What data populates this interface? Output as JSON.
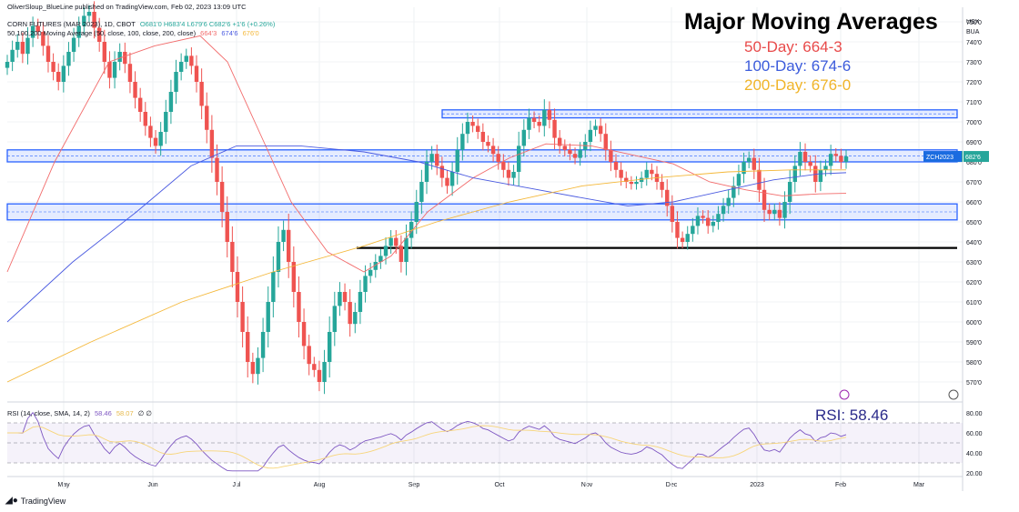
{
  "header": {
    "publisher": "OliverSloup_BlueLine published on TradingView.com, Feb 02, 2023 13:09 UTC",
    "symbol_line": "CORN FUTURES (MAR 2023), 1D, CBOT",
    "ohlc": "O681'0 H683'4 L679'6 C682'6 +1'6 (+0.26%)",
    "ma_line": "50,100,200 Moving Average (50, close, 100, close, 200, close)",
    "ma_values": [
      "664'3",
      "674'6",
      "676'0"
    ]
  },
  "annotations": {
    "title": "Major Moving Averages",
    "ma50": "50-Day: 664-3",
    "ma100": "100-Day: 674-6",
    "ma200": "200-Day: 676-0",
    "rsi": "RSI: 58.46"
  },
  "rsi_header": {
    "label": "RSI (14, close, SMA, 14, 2)",
    "rsi_value": "58.46",
    "sma_value": "58.07",
    "tail": "∅ ∅"
  },
  "price_axis": {
    "currency": "USX",
    "unit": "BUA",
    "last_label": "ZCH2023",
    "last_value": "682'6"
  },
  "rsi_axis": [
    "80.00",
    "60.00",
    "40.00",
    "20.00"
  ],
  "logo": "TradingView",
  "colors": {
    "up": "#26a69a",
    "down": "#ef5350",
    "ma50": "#f26b6b",
    "ma100": "#4a5ae0",
    "ma200": "#f4b83a",
    "band": "#2962ff",
    "rsi_line": "#7e57c2",
    "rsi_sma": "#f7d57a"
  },
  "chart_data": {
    "type": "candlestick",
    "title": "Major Moving Averages",
    "instrument": "CORN FUTURES (MAR 2023), 1D, CBOT",
    "x_labels": [
      "May",
      "Jun",
      "Jul",
      "Aug",
      "Sep",
      "Oct",
      "Nov",
      "Dec",
      "2023",
      "Feb",
      "Mar"
    ],
    "y_range": [
      5650,
      7550
    ],
    "y_ticks": [
      "570'0",
      "580'0",
      "590'0",
      "600'0",
      "610'0",
      "620'0",
      "630'0",
      "640'0",
      "650'0",
      "660'0",
      "670'0",
      "680'0",
      "690'0",
      "700'0",
      "710'0",
      "720'0",
      "730'0",
      "740'0",
      "750'0"
    ],
    "support_resistance_zones": [
      {
        "low": 7020,
        "high": 7060
      },
      {
        "low": 6800,
        "high": 6860
      },
      {
        "low": 6510,
        "high": 6590
      }
    ],
    "horizontal_support": 6370,
    "moving_averages": {
      "ma50": 6643,
      "ma100": 6746,
      "ma200": 6760
    },
    "closes": [
      7300,
      7360,
      7400,
      7340,
      7420,
      7480,
      7450,
      7380,
      7300,
      7250,
      7200,
      7280,
      7350,
      7420,
      7480,
      7530,
      7550,
      7470,
      7400,
      7300,
      7220,
      7300,
      7350,
      7290,
      7200,
      7120,
      7050,
      6980,
      6920,
      6880,
      6950,
      7050,
      7150,
      7250,
      7300,
      7330,
      7280,
      7200,
      7080,
      6960,
      6820,
      6700,
      6550,
      6400,
      6250,
      6100,
      5950,
      5800,
      5740,
      5820,
      5950,
      6100,
      6250,
      6400,
      6460,
      6300,
      6150,
      6000,
      5880,
      5790,
      5760,
      5700,
      5800,
      5950,
      6080,
      6150,
      6100,
      5990,
      6050,
      6150,
      6230,
      6260,
      6300,
      6330,
      6380,
      6420,
      6380,
      6300,
      6420,
      6500,
      6600,
      6700,
      6800,
      6840,
      6780,
      6720,
      6680,
      6750,
      6860,
      6940,
      7000,
      6980,
      6950,
      6900,
      6880,
      6840,
      6800,
      6760,
      6720,
      6750,
      6880,
      6960,
      7020,
      7000,
      6980,
      7060,
      7010,
      6920,
      6880,
      6860,
      6840,
      6820,
      6860,
      6900,
      6960,
      6980,
      6940,
      6860,
      6800,
      6760,
      6720,
      6700,
      6690,
      6700,
      6720,
      6760,
      6740,
      6700,
      6660,
      6580,
      6500,
      6420,
      6400,
      6440,
      6480,
      6530,
      6520,
      6480,
      6500,
      6540,
      6580,
      6620,
      6680,
      6740,
      6800,
      6820,
      6760,
      6660,
      6560,
      6540,
      6560,
      6520,
      6600,
      6700,
      6780,
      6850,
      6800,
      6780,
      6700,
      6760,
      6780,
      6840,
      6830,
      6800,
      6827
    ],
    "rsi": {
      "levels": [
        70,
        50,
        30
      ],
      "range": [
        20,
        90
      ],
      "last": 58.46,
      "sma_last": 58.07
    }
  }
}
